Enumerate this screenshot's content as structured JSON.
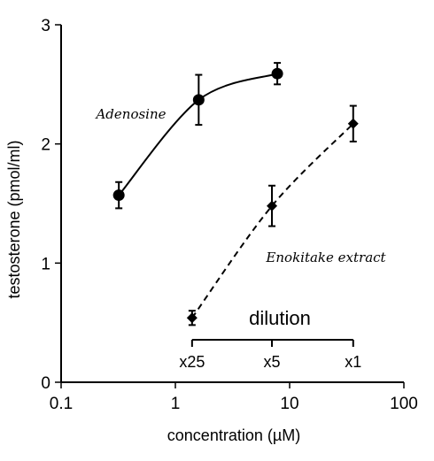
{
  "chart_data": {
    "type": "line",
    "xlabel": "concentration (µM)",
    "ylabel": "testosterone (pmol/ml)",
    "x_scale": "log",
    "xlim": [
      0.1,
      100
    ],
    "ylim": [
      0,
      3
    ],
    "x_ticks": [
      "0.1",
      "1",
      "10",
      "100"
    ],
    "y_ticks": [
      "0",
      "1",
      "2",
      "3"
    ],
    "grid": false,
    "series": [
      {
        "name": "Adenosine",
        "marker": "circle",
        "line_style": "solid",
        "x": [
          0.32,
          1.6,
          7.8
        ],
        "y": [
          1.57,
          2.37,
          2.59
        ],
        "err": [
          0.11,
          0.21,
          0.09
        ]
      },
      {
        "name": "Enokitake extract",
        "marker": "diamond",
        "line_style": "dashed",
        "x": [
          1.4,
          7.0,
          36
        ],
        "y": [
          0.54,
          1.48,
          2.17
        ],
        "err": [
          0.06,
          0.17,
          0.15
        ]
      }
    ],
    "dilution_axis": {
      "title": "dilution",
      "labels": [
        "x25",
        "x5",
        "x1"
      ],
      "x": [
        1.4,
        7.0,
        36
      ]
    }
  }
}
